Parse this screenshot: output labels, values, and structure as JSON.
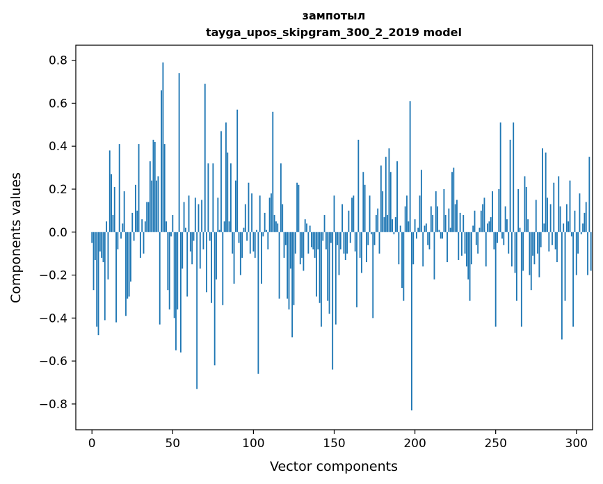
{
  "chart_data": {
    "type": "bar",
    "title": "зампотыл",
    "subtitle": "tayga_upos_skipgram_300_2_2019 model",
    "xlabel": "Vector components",
    "ylabel": "Components values",
    "xlim": [
      -10,
      310
    ],
    "ylim": [
      -0.92,
      0.87
    ],
    "xticks": [
      0,
      50,
      100,
      150,
      200,
      250,
      300
    ],
    "xtick_labels": [
      "0",
      "50",
      "100",
      "150",
      "200",
      "250",
      "300"
    ],
    "yticks": [
      -0.8,
      -0.6,
      -0.4,
      -0.2,
      0.0,
      0.2,
      0.4,
      0.6,
      0.8
    ],
    "ytick_labels": [
      "−0.8",
      "−0.6",
      "−0.4",
      "−0.2",
      "0.0",
      "0.2",
      "0.4",
      "0.6",
      "0.8"
    ],
    "grid": false,
    "bar_color": "#1f77b4",
    "values": [
      -0.05,
      -0.27,
      -0.13,
      -0.44,
      -0.48,
      -0.09,
      -0.12,
      -0.14,
      -0.41,
      0.05,
      -0.22,
      0.38,
      0.27,
      0.08,
      0.21,
      -0.42,
      -0.08,
      0.41,
      -0.03,
      0.04,
      0.19,
      -0.39,
      -0.31,
      -0.3,
      -0.23,
      0.09,
      -0.04,
      0.22,
      0.1,
      0.41,
      -0.12,
      0.06,
      -0.1,
      0.05,
      0.14,
      0.14,
      0.33,
      0.24,
      0.43,
      0.42,
      0.24,
      0.26,
      -0.43,
      0.66,
      0.79,
      0.41,
      0.05,
      -0.27,
      -0.36,
      -0.02,
      0.08,
      -0.4,
      -0.55,
      -0.36,
      0.74,
      -0.56,
      -0.17,
      0.14,
      0.02,
      -0.3,
      0.17,
      -0.09,
      -0.15,
      -0.04,
      0.16,
      -0.73,
      0.13,
      -0.17,
      0.15,
      -0.08,
      0.69,
      -0.28,
      0.32,
      -0.04,
      -0.33,
      0.32,
      -0.62,
      -0.22,
      0.16,
      0.01,
      0.47,
      -0.34,
      0.05,
      0.51,
      0.37,
      0.05,
      0.32,
      -0.1,
      -0.24,
      0.24,
      0.57,
      -0.05,
      -0.2,
      -0.12,
      0.02,
      0.13,
      -0.04,
      0.23,
      -0.1,
      0.18,
      -0.09,
      -0.12,
      0.01,
      -0.66,
      0.17,
      -0.24,
      -0.02,
      0.09,
      0.01,
      -0.08,
      0.16,
      0.18,
      0.56,
      0.08,
      0.05,
      0.04,
      -0.31,
      0.32,
      0.13,
      -0.12,
      -0.06,
      -0.31,
      -0.36,
      -0.17,
      -0.49,
      -0.34,
      -0.1,
      0.23,
      0.22,
      -0.15,
      -0.12,
      -0.18,
      0.06,
      0.04,
      -0.1,
      0.03,
      -0.07,
      -0.08,
      -0.12,
      -0.3,
      -0.08,
      -0.33,
      -0.44,
      -0.04,
      0.08,
      -0.08,
      -0.32,
      -0.38,
      -0.05,
      -0.64,
      0.17,
      -0.43,
      -0.06,
      -0.2,
      -0.08,
      0.13,
      -0.1,
      -0.13,
      -0.1,
      0.1,
      -0.05,
      0.16,
      0.17,
      -0.09,
      -0.35,
      0.43,
      -0.12,
      -0.19,
      0.28,
      0.22,
      -0.14,
      -0.06,
      0.17,
      -0.01,
      -0.4,
      -0.06,
      0.08,
      0.11,
      -0.1,
      0.31,
      0.19,
      0.07,
      0.35,
      0.08,
      0.39,
      0.28,
      0.06,
      -0.01,
      0.07,
      0.33,
      -0.15,
      0.03,
      -0.26,
      -0.32,
      0.12,
      0.17,
      0.05,
      0.61,
      -0.83,
      -0.15,
      0.06,
      -0.03,
      0.02,
      0.17,
      0.29,
      -0.16,
      0.03,
      0.04,
      -0.06,
      -0.08,
      0.12,
      0.08,
      -0.22,
      0.19,
      0.12,
      0.01,
      -0.03,
      -0.03,
      0.2,
      0.08,
      -0.14,
      0.11,
      0.02,
      0.28,
      0.3,
      0.13,
      0.15,
      -0.13,
      0.09,
      -0.11,
      0.08,
      -0.1,
      -0.16,
      -0.22,
      -0.32,
      -0.15,
      0.03,
      0.1,
      -0.06,
      -0.1,
      0.02,
      0.1,
      0.13,
      0.16,
      -0.16,
      0.04,
      0.05,
      0.07,
      0.19,
      -0.08,
      -0.44,
      -0.05,
      0.2,
      0.51,
      -0.03,
      -0.06,
      0.12,
      0.06,
      -0.1,
      0.43,
      -0.16,
      0.51,
      -0.19,
      -0.32,
      0.2,
      0.02,
      -0.44,
      -0.18,
      0.26,
      0.21,
      0.06,
      -0.2,
      -0.27,
      -0.11,
      -0.15,
      0.15,
      -0.1,
      -0.21,
      -0.07,
      0.39,
      0.04,
      0.37,
      0.16,
      -0.09,
      0.13,
      -0.06,
      0.23,
      -0.08,
      -0.14,
      0.26,
      0.12,
      -0.5,
      0.04,
      -0.32,
      0.13,
      0.05,
      0.24,
      -0.02,
      -0.44,
      0.1,
      -0.2,
      -0.1,
      0.18,
      -0.01,
      0.04,
      0.09,
      0.14,
      -0.2,
      0.35,
      -0.18
    ]
  }
}
